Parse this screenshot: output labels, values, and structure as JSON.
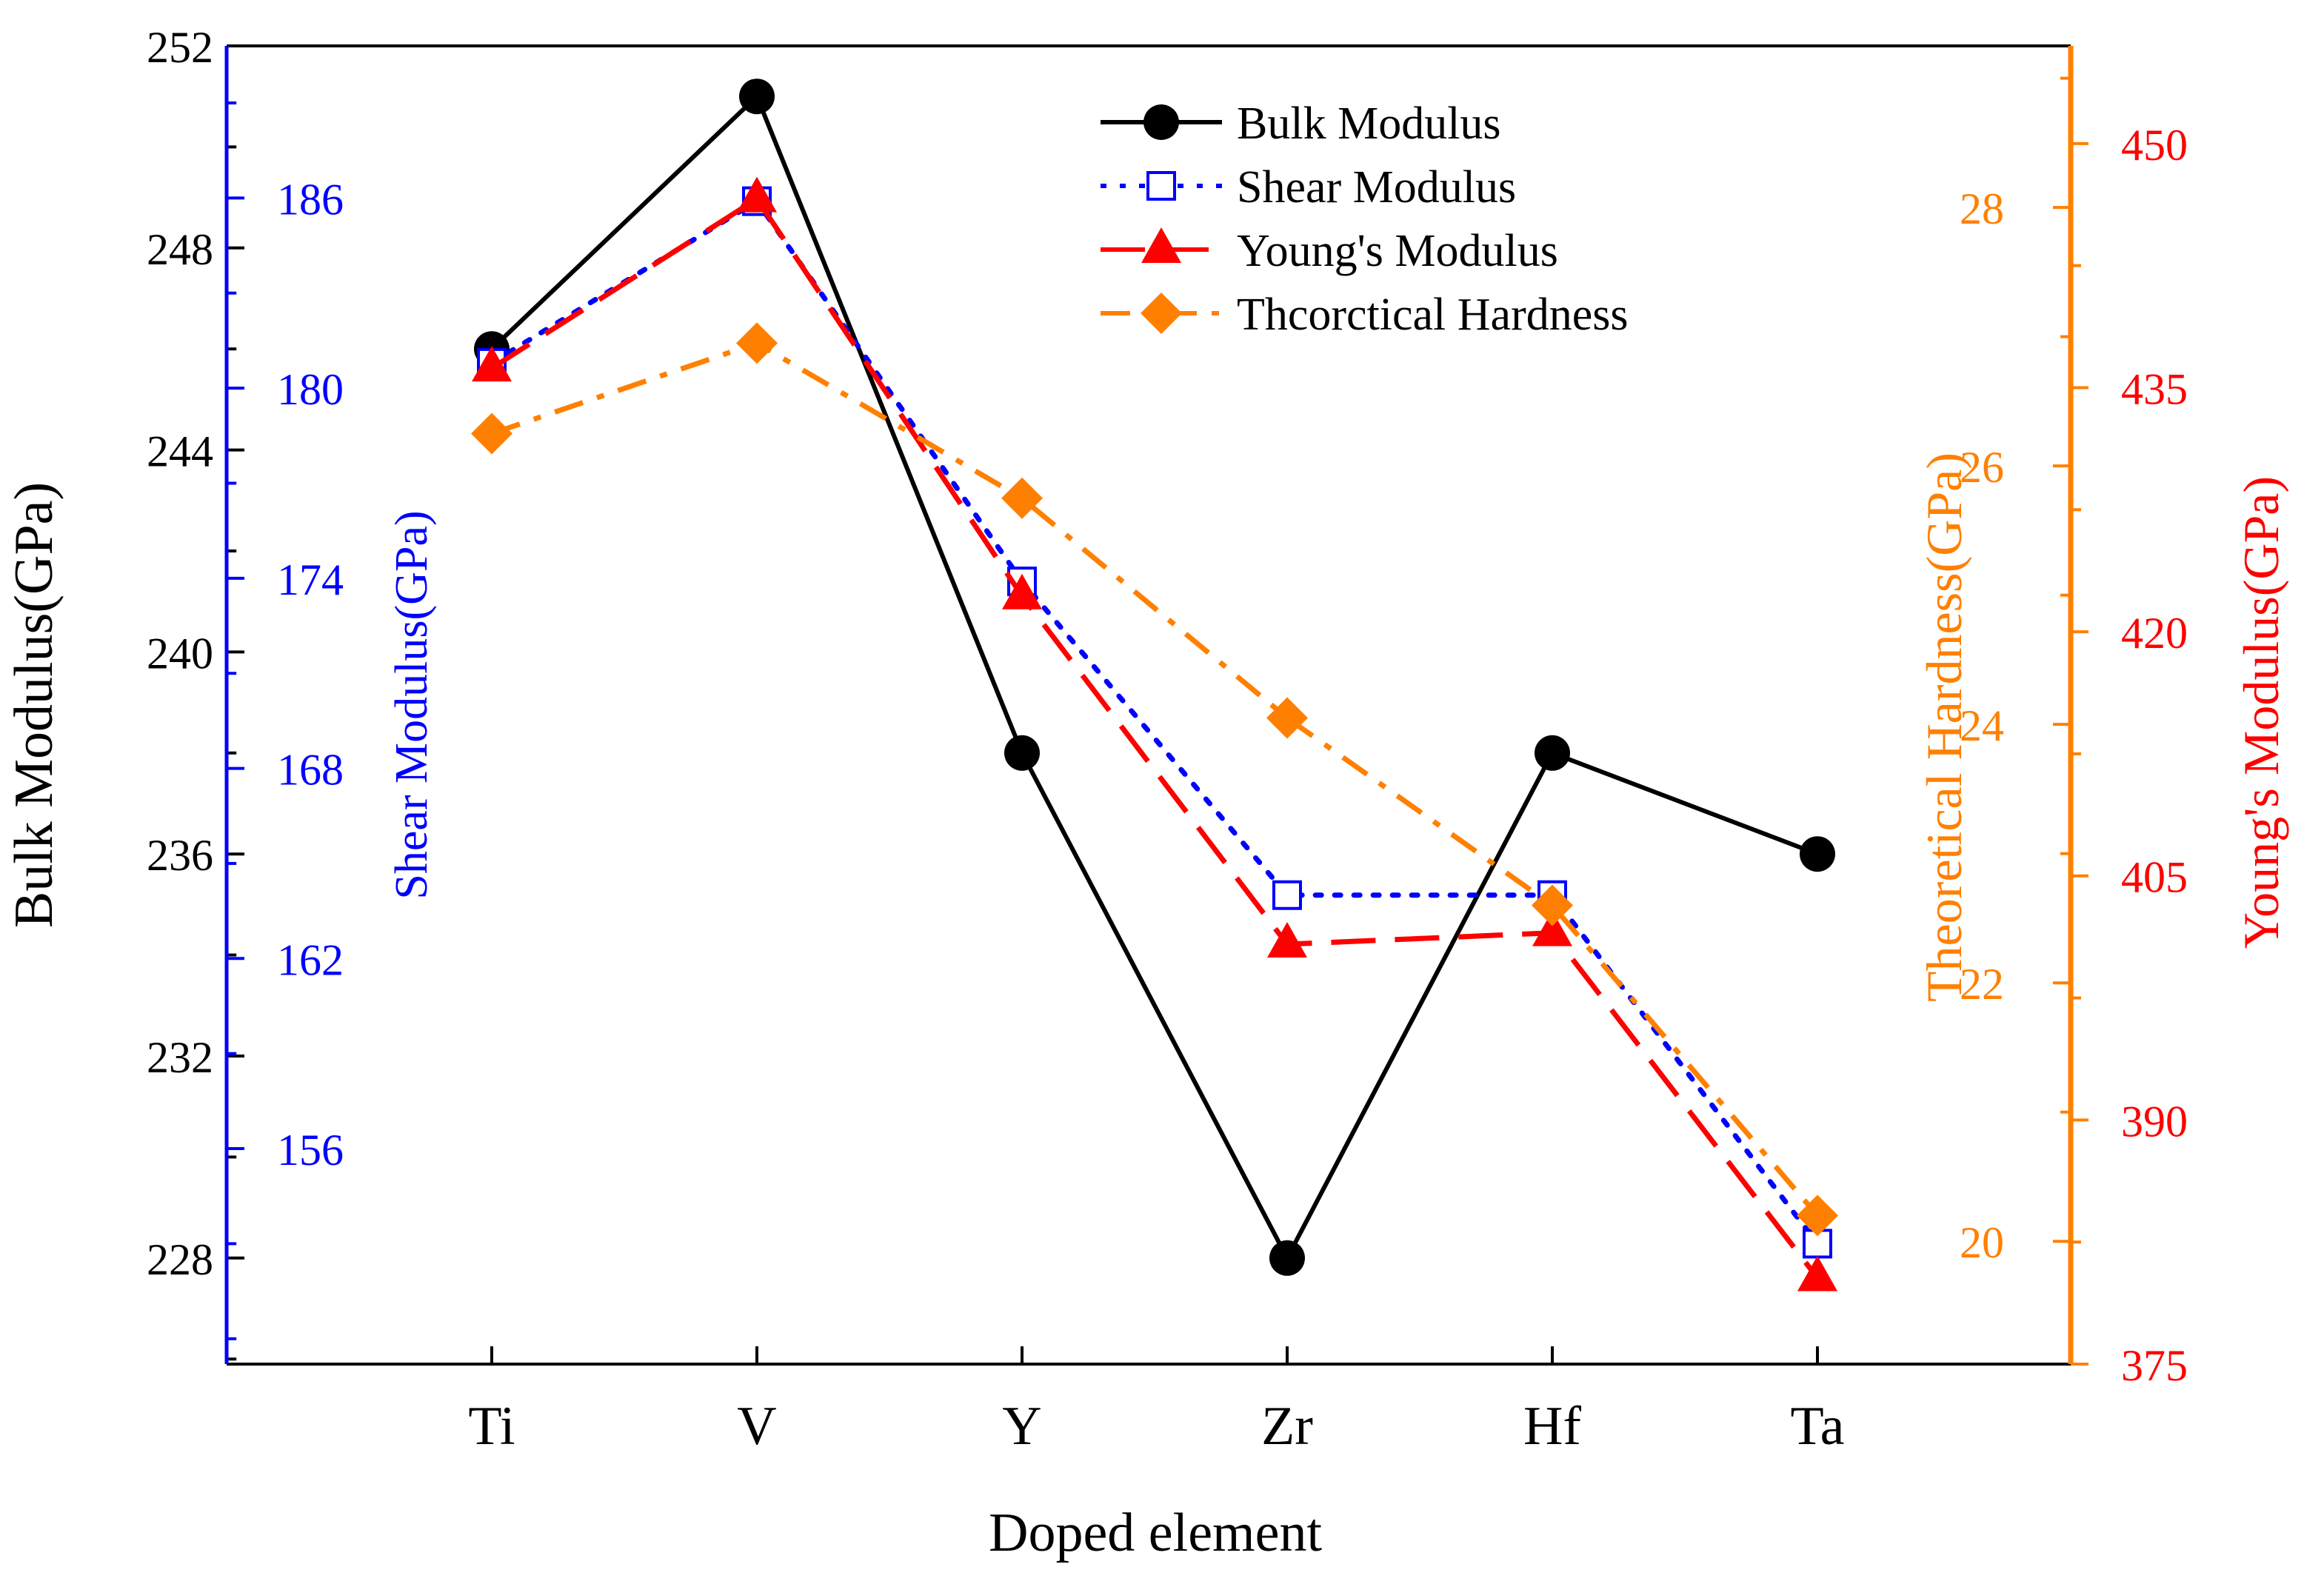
{
  "chart_data": {
    "type": "line",
    "categories": [
      "Ti",
      "V",
      "Y",
      "Zr",
      "Hf",
      "Ta"
    ],
    "xlabel": "Doped element",
    "axes": {
      "bulk": {
        "label": "Bulk Modulus(GPa)",
        "ylim": [
          225.9,
          252
        ],
        "ticks": [
          228,
          232,
          236,
          240,
          244,
          248,
          252
        ],
        "color": "#000000"
      },
      "shear": {
        "label": "Shear Modulus(GPa)",
        "ylim": [
          149.2,
          190.8
        ],
        "ticks": [
          156,
          162,
          168,
          174,
          180,
          186
        ],
        "color": "#0000ff"
      },
      "hardness": {
        "label": "Theoretical Hardness(GPa)",
        "ylim": [
          19.05,
          29.25
        ],
        "ticks": [
          20,
          22,
          24,
          26,
          28
        ],
        "color": "#ff8000"
      },
      "young": {
        "label": "Young's Modulus(GPa)",
        "ylim": [
          375,
          456
        ],
        "ticks": [
          375,
          390,
          405,
          420,
          435,
          450
        ],
        "color": "#ff0000"
      }
    },
    "series": [
      {
        "name": "Bulk Modulus",
        "axis": "bulk",
        "color": "#000000",
        "dash": "solid",
        "marker": "circle",
        "values": [
          246,
          251,
          238,
          228,
          238,
          236
        ]
      },
      {
        "name": "Shear Modulus",
        "axis": "shear",
        "color": "#0000ff",
        "dash": "dot",
        "marker": "open-square",
        "values": [
          180.8,
          185.9,
          173.9,
          164.0,
          164.0,
          153.0
        ]
      },
      {
        "name": "Young's Modulus",
        "axis": "young",
        "color": "#ff0000",
        "dash": "dash",
        "marker": "triangle",
        "values": [
          436.2,
          446.6,
          422.2,
          400.8,
          401.5,
          380.3
        ]
      },
      {
        "name": "Thcorctical Hardness",
        "axis": "hardness",
        "color": "#ff8000",
        "dash": "dashdot",
        "marker": "diamond",
        "values": [
          26.25,
          26.95,
          25.75,
          24.05,
          22.6,
          20.2
        ]
      }
    ],
    "legend_position": "top-center",
    "grid": false
  }
}
